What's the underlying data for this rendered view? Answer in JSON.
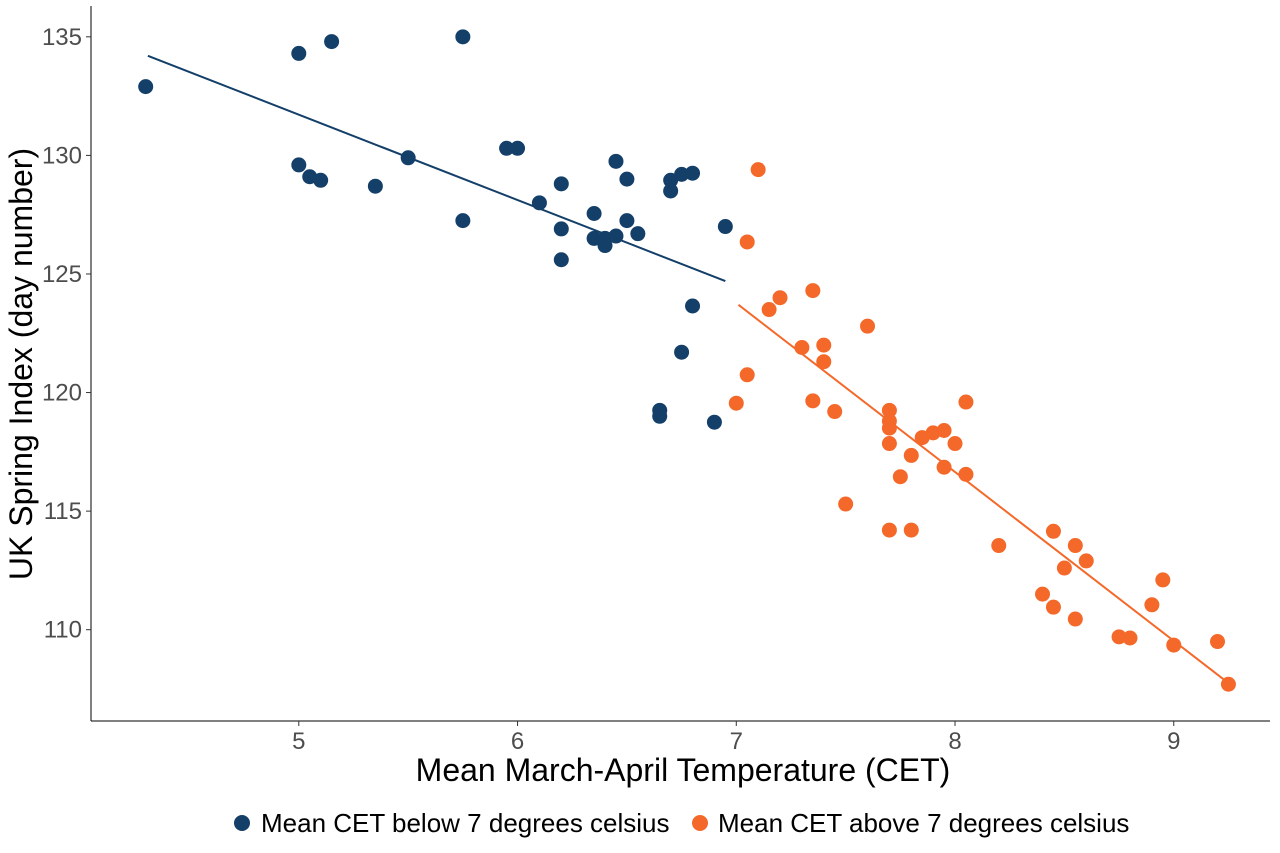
{
  "chart_data": {
    "type": "scatter",
    "title": "",
    "xlabel": "Mean March-April Temperature (CET)",
    "ylabel": "UK Spring Index (day number)",
    "xlim": [
      4.05,
      9.44
    ],
    "ylim": [
      106.15,
      136.3
    ],
    "xticks": [
      "5",
      "6",
      "7",
      "8",
      "9"
    ],
    "yticks": [
      "110",
      "115",
      "120",
      "125",
      "130",
      "135"
    ],
    "grid": false,
    "legend_position": "bottom",
    "series": [
      {
        "name": "Mean CET below 7 degrees celsius",
        "color": "#133f69",
        "points": [
          [
            4.3,
            132.9
          ],
          [
            5.0,
            134.3
          ],
          [
            5.15,
            134.8
          ],
          [
            5.75,
            135.0
          ],
          [
            5.0,
            129.6
          ],
          [
            5.05,
            129.1
          ],
          [
            5.1,
            128.95
          ],
          [
            5.35,
            128.7
          ],
          [
            5.5,
            129.9
          ],
          [
            5.75,
            127.25
          ],
          [
            5.95,
            130.3
          ],
          [
            6.0,
            130.3
          ],
          [
            6.1,
            128.0
          ],
          [
            6.2,
            128.8
          ],
          [
            6.2,
            126.9
          ],
          [
            6.2,
            125.6
          ],
          [
            6.35,
            127.55
          ],
          [
            6.35,
            126.5
          ],
          [
            6.4,
            126.5
          ],
          [
            6.4,
            126.2
          ],
          [
            6.45,
            126.6
          ],
          [
            6.45,
            129.75
          ],
          [
            6.5,
            129.0
          ],
          [
            6.5,
            127.25
          ],
          [
            6.55,
            126.7
          ],
          [
            6.7,
            128.95
          ],
          [
            6.7,
            128.5
          ],
          [
            6.75,
            129.2
          ],
          [
            6.8,
            129.25
          ],
          [
            6.95,
            127.0
          ],
          [
            6.8,
            123.65
          ],
          [
            6.75,
            121.7
          ],
          [
            6.65,
            119.25
          ],
          [
            6.65,
            119.0
          ],
          [
            6.9,
            118.75
          ]
        ],
        "fit_line": [
          [
            4.31,
            134.2
          ],
          [
            6.95,
            124.7
          ]
        ]
      },
      {
        "name": "Mean CET above 7 degrees celsius",
        "color": "#f4692a",
        "points": [
          [
            7.1,
            129.4
          ],
          [
            7.05,
            126.35
          ],
          [
            7.2,
            124.0
          ],
          [
            7.15,
            123.5
          ],
          [
            7.35,
            124.3
          ],
          [
            7.6,
            122.8
          ],
          [
            7.3,
            121.9
          ],
          [
            7.4,
            122.0
          ],
          [
            7.4,
            121.3
          ],
          [
            7.05,
            120.75
          ],
          [
            7.0,
            119.55
          ],
          [
            7.35,
            119.65
          ],
          [
            7.45,
            119.2
          ],
          [
            8.05,
            119.6
          ],
          [
            7.7,
            119.25
          ],
          [
            7.7,
            118.8
          ],
          [
            7.7,
            118.5
          ],
          [
            7.7,
            117.85
          ],
          [
            7.85,
            118.1
          ],
          [
            7.9,
            118.3
          ],
          [
            7.95,
            118.4
          ],
          [
            8.0,
            117.85
          ],
          [
            7.8,
            117.35
          ],
          [
            7.95,
            116.85
          ],
          [
            8.05,
            116.55
          ],
          [
            7.75,
            116.45
          ],
          [
            7.5,
            115.3
          ],
          [
            7.7,
            114.2
          ],
          [
            7.8,
            114.2
          ],
          [
            8.2,
            113.55
          ],
          [
            8.45,
            114.15
          ],
          [
            8.55,
            113.55
          ],
          [
            8.6,
            112.9
          ],
          [
            8.5,
            112.6
          ],
          [
            8.95,
            112.1
          ],
          [
            8.4,
            111.5
          ],
          [
            8.45,
            110.95
          ],
          [
            8.9,
            111.05
          ],
          [
            8.55,
            110.45
          ],
          [
            8.75,
            109.7
          ],
          [
            8.8,
            109.65
          ],
          [
            9.0,
            109.35
          ],
          [
            9.2,
            109.5
          ],
          [
            9.25,
            107.7
          ]
        ],
        "fit_line": [
          [
            7.01,
            123.7
          ],
          [
            9.25,
            107.75
          ]
        ]
      }
    ]
  }
}
